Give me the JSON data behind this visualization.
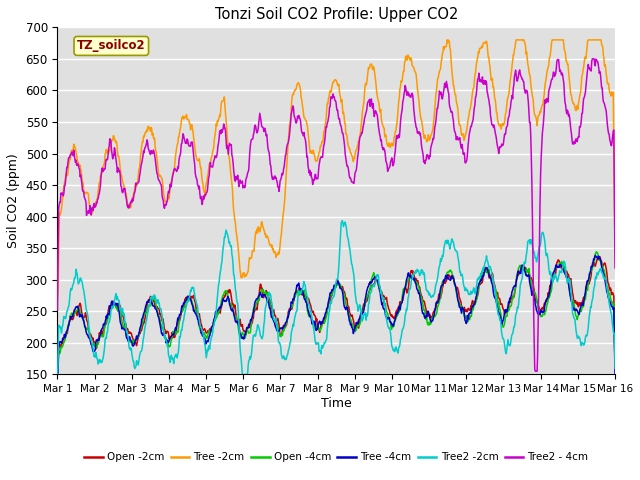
{
  "title": "Tonzi Soil CO2 Profile: Upper CO2",
  "ylabel": "Soil CO2 (ppm)",
  "xlabel": "Time",
  "subtitle_box": "TZ_soilco2",
  "ylim": [
    150,
    700
  ],
  "yticks": [
    150,
    200,
    250,
    300,
    350,
    400,
    450,
    500,
    550,
    600,
    650,
    700
  ],
  "xtick_labels": [
    "Mar 1",
    "Mar 2",
    "Mar 3",
    "Mar 4",
    "Mar 5",
    "Mar 6",
    "Mar 7",
    "Mar 8",
    "Mar 9",
    "Mar 10",
    "Mar 11",
    "Mar 12",
    "Mar 13",
    "Mar 14",
    "Mar 15",
    "Mar 16"
  ],
  "series": [
    {
      "label": "Open -2cm",
      "color": "#cc0000"
    },
    {
      "label": "Tree -2cm",
      "color": "#ff9900"
    },
    {
      "label": "Open -4cm",
      "color": "#00cc00"
    },
    {
      "label": "Tree -4cm",
      "color": "#0000cc"
    },
    {
      "label": "Tree2 -2cm",
      "color": "#00cccc"
    },
    {
      "label": "Tree2 - 4cm",
      "color": "#cc00cc"
    }
  ],
  "background_color": "#ffffff",
  "plot_bg_color": "#e0e0e0",
  "grid_color": "#ffffff",
  "n_points": 960
}
